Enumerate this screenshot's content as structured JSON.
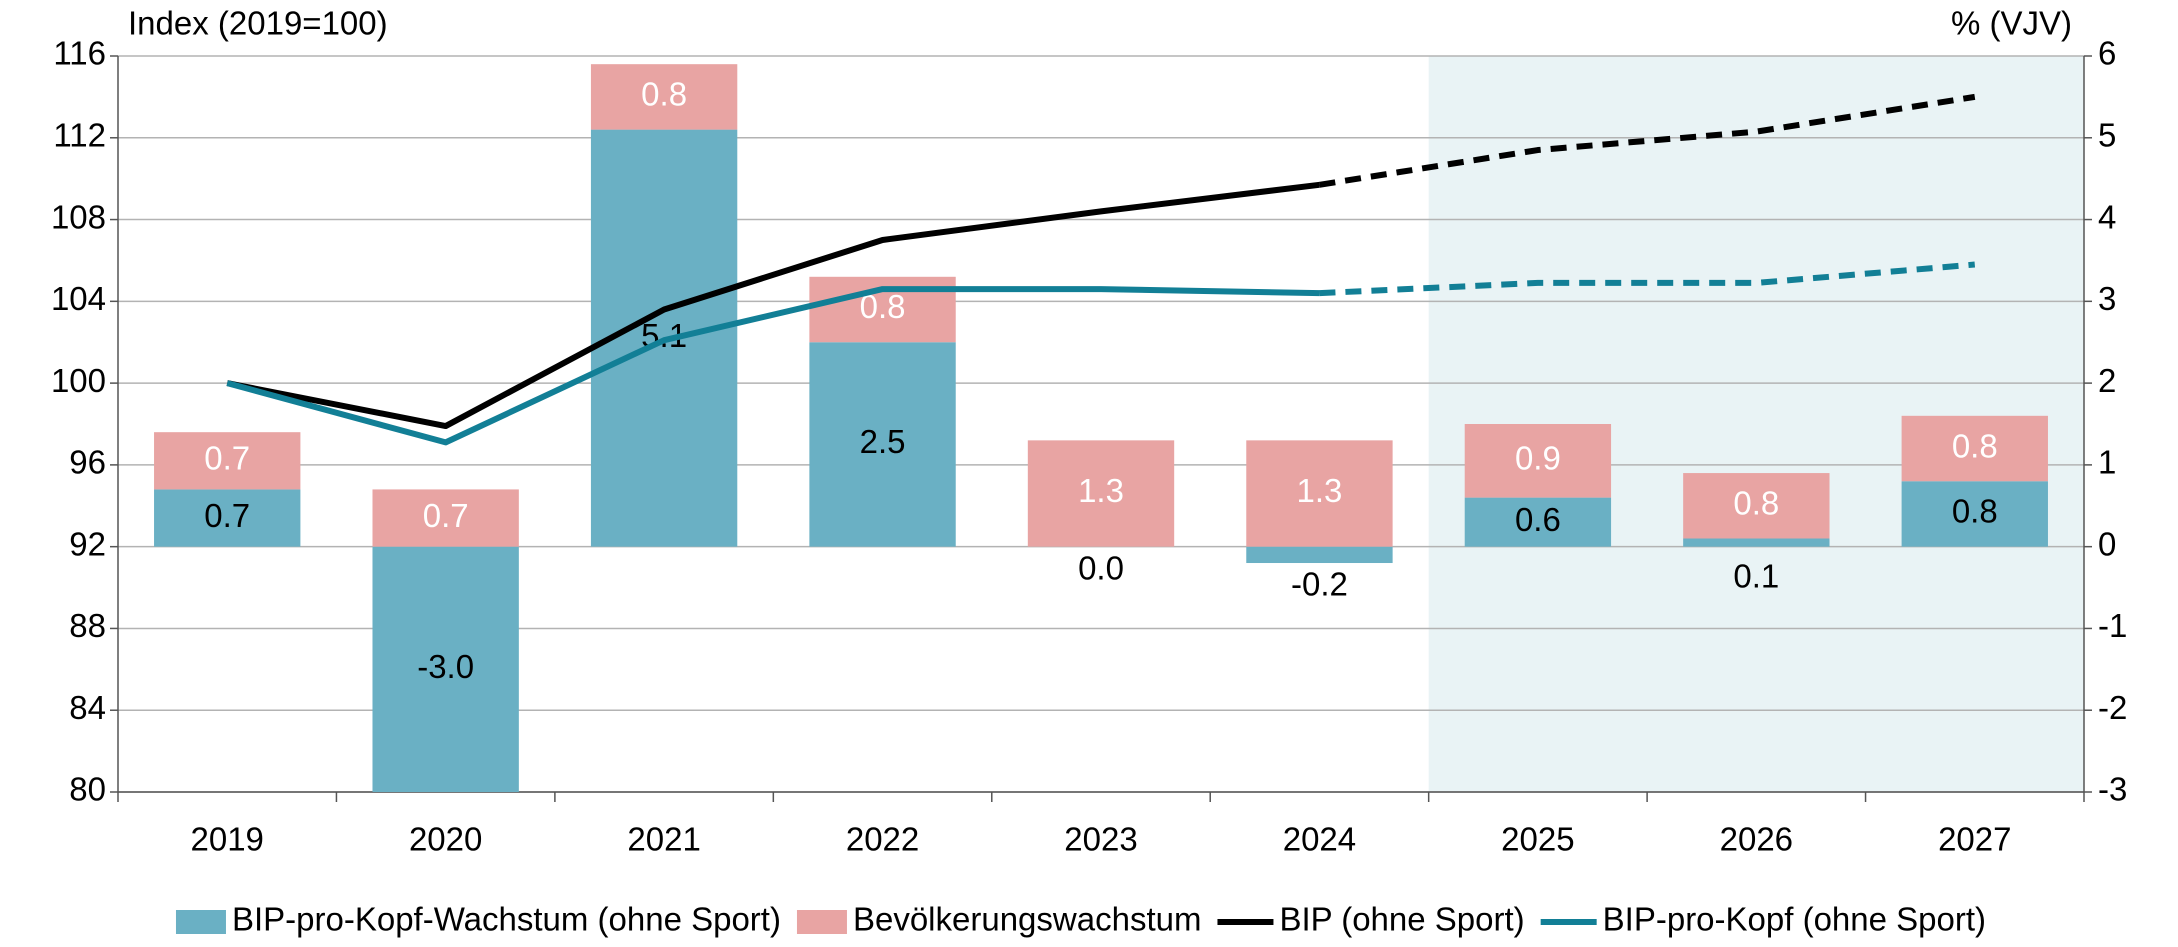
{
  "chart_data": {
    "type": "bar-line",
    "y_label": "Index (2019=100)",
    "y2_label": "% (VJV)",
    "categories": [
      "2019",
      "2020",
      "2021",
      "2022",
      "2023",
      "2024",
      "2025",
      "2026",
      "2027"
    ],
    "ylim": [
      80,
      116
    ],
    "yticks": [
      80,
      84,
      88,
      92,
      96,
      100,
      104,
      108,
      112,
      116
    ],
    "y2lim": [
      -3,
      6
    ],
    "y2ticks": [
      -3,
      -2,
      -1,
      0,
      1,
      2,
      3,
      4,
      5,
      6
    ],
    "grid": true,
    "projection_start": 5,
    "projection_color": "#e9f3f5",
    "series": [
      {
        "name": "BIP-pro-Kopf-Wachstum (ohne Sport)",
        "kind": "bar",
        "axis": "y2",
        "color": "#6ab0c4",
        "label_color": "#000000",
        "values": [
          0.7,
          -3.0,
          5.1,
          2.5,
          0.0,
          -0.2,
          0.6,
          0.1,
          0.8
        ],
        "value_labels": [
          "0.7",
          "-3.0",
          "5.1",
          "2.5",
          "0.0",
          "-0.2",
          "0.6",
          "0.1",
          "0.8"
        ]
      },
      {
        "name": "Bevölkerungswachstum",
        "kind": "bar",
        "axis": "y2",
        "color": "#e8a4a3",
        "label_color": "#ffffff",
        "values": [
          0.7,
          0.7,
          0.8,
          0.8,
          1.3,
          1.3,
          0.9,
          0.8,
          0.8
        ],
        "value_labels": [
          "0.7",
          "0.7",
          "0.8",
          "0.8",
          "1.3",
          "1.3",
          "0.9",
          "0.8",
          "0.8"
        ]
      },
      {
        "name": "BIP (ohne Sport)",
        "kind": "line",
        "color": "#000000",
        "values": [
          100,
          97.9,
          103.6,
          107.0,
          108.4,
          109.7,
          111.4,
          112.3,
          114.0
        ]
      },
      {
        "name": "BIP-pro-Kopf  (ohne Sport)",
        "kind": "line",
        "color": "#127f96",
        "values": [
          100,
          97.1,
          102.1,
          104.6,
          104.6,
          104.4,
          104.9,
          104.9,
          105.8
        ]
      }
    ]
  }
}
